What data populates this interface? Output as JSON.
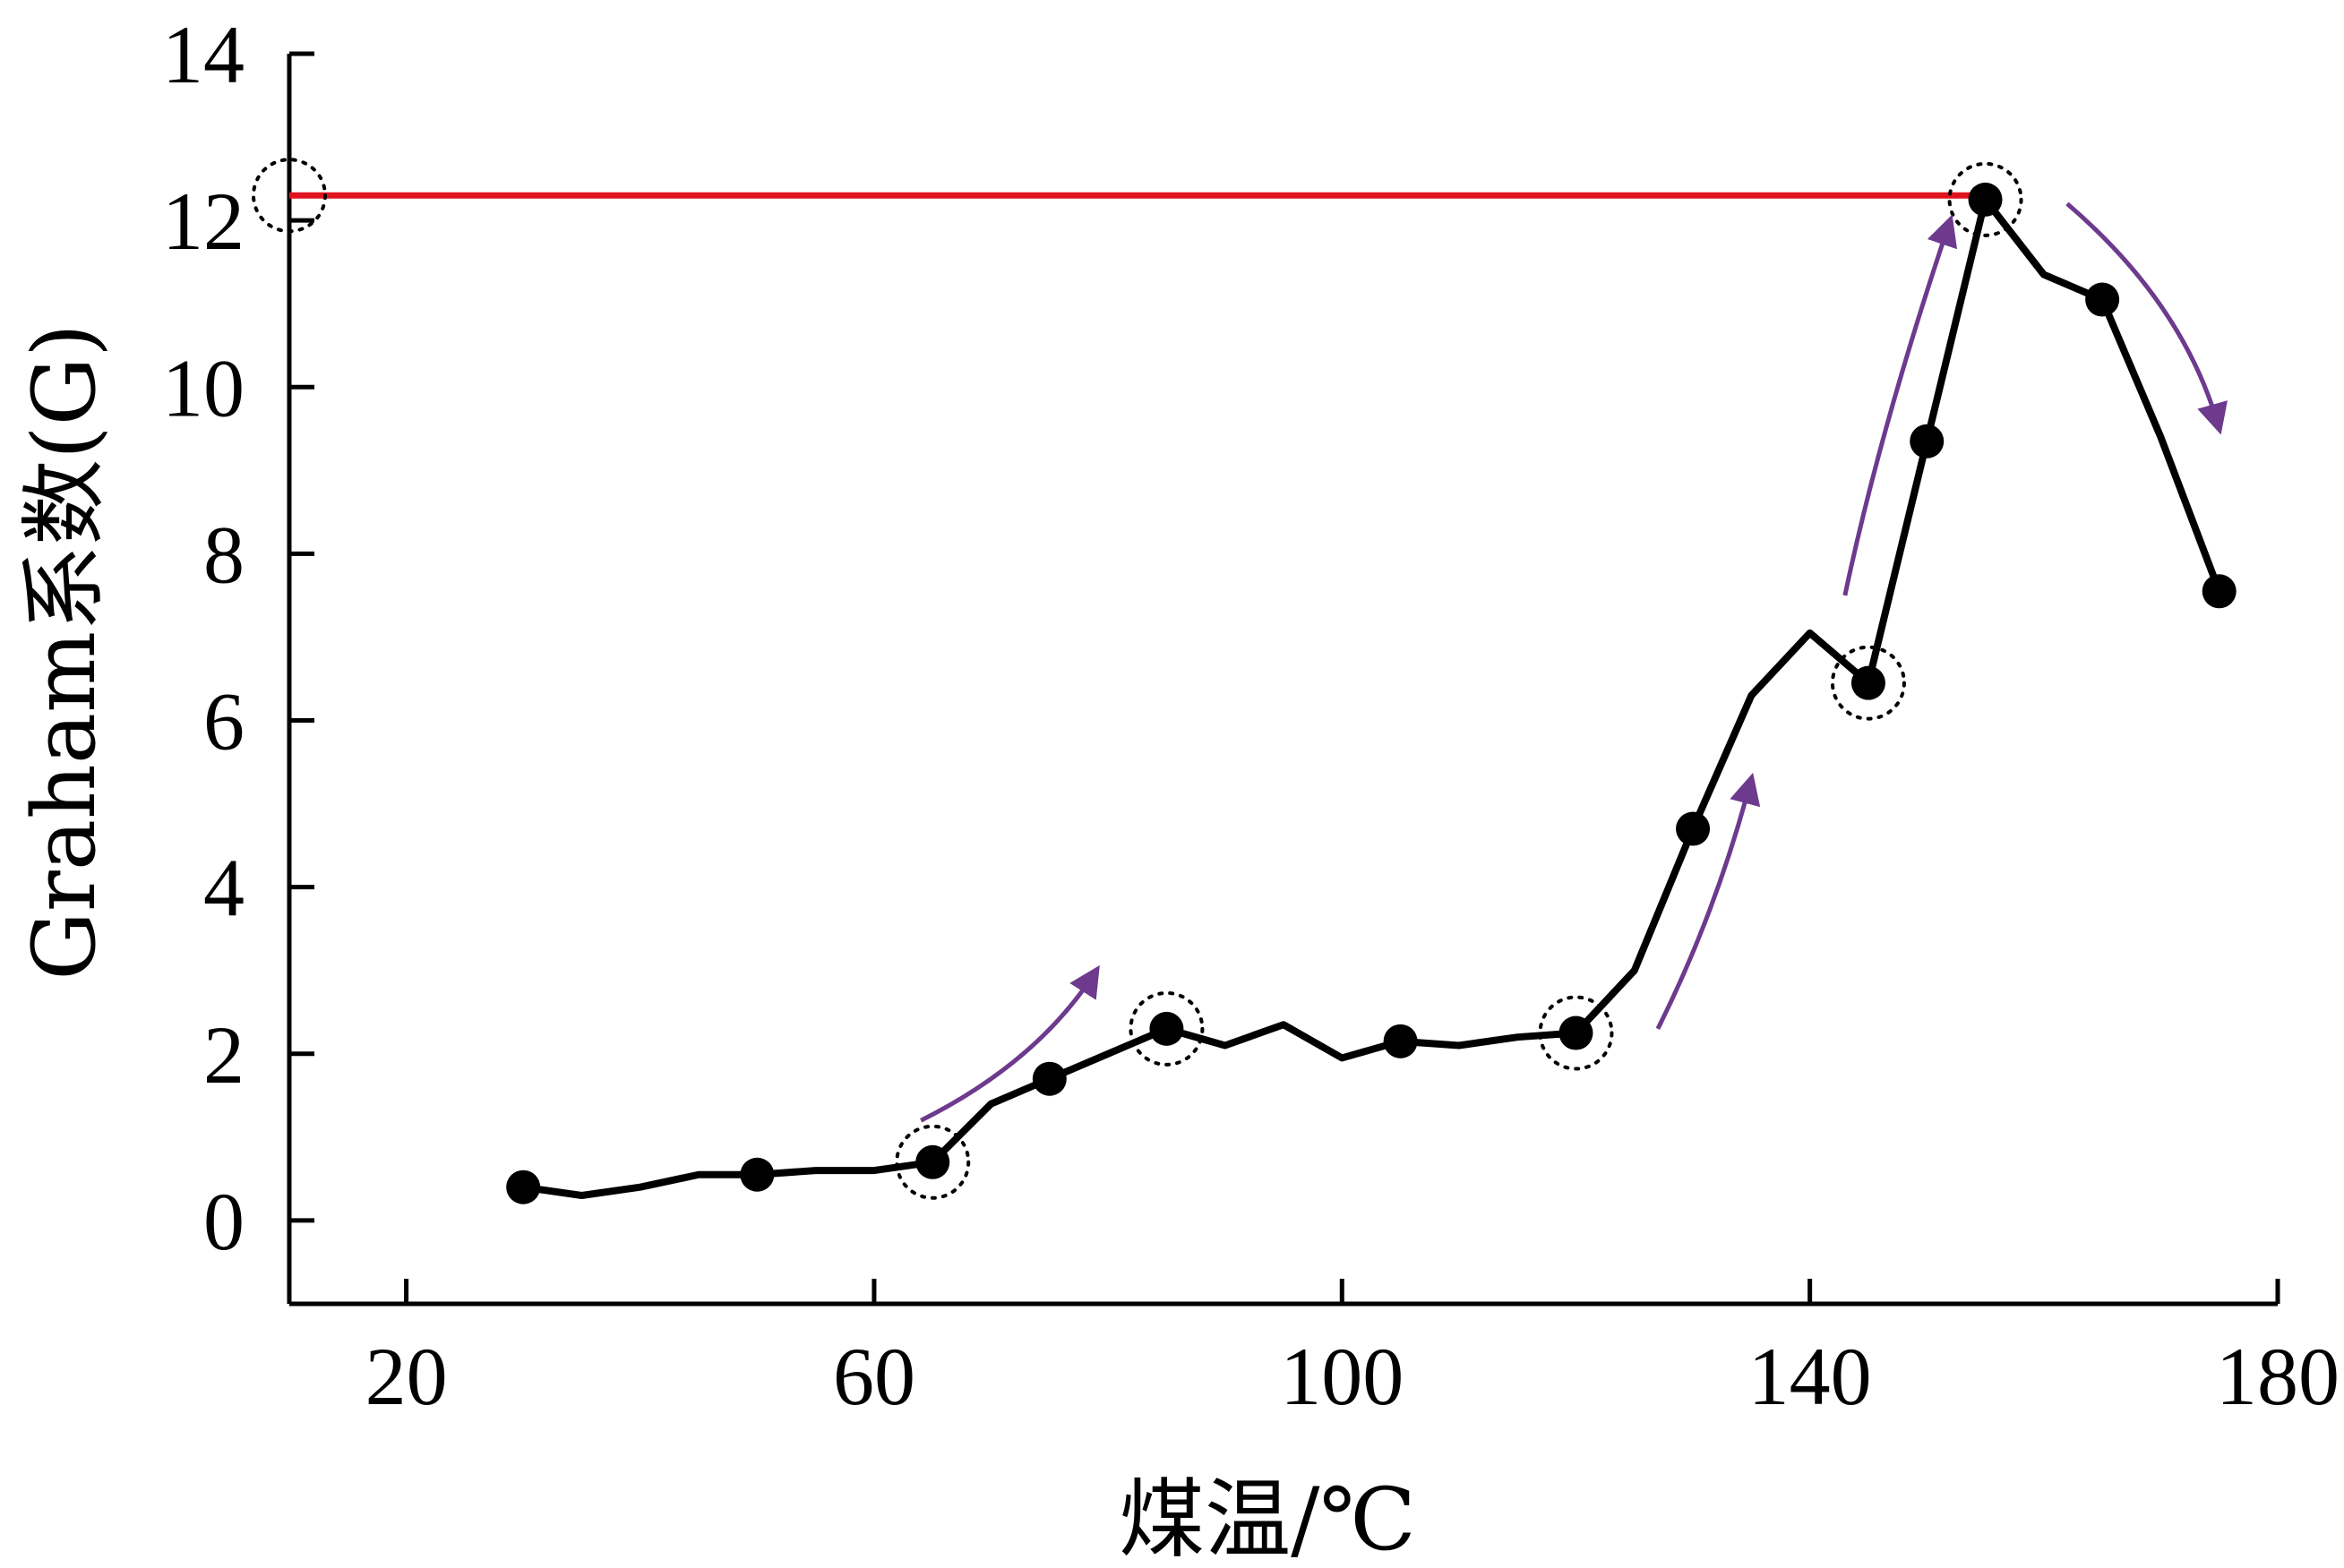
{
  "chart_data": {
    "type": "line",
    "title": "",
    "xlabel": "煤温/℃",
    "ylabel": "Graham系数(G)",
    "xlim": [
      10,
      180
    ],
    "ylim": [
      -1,
      14
    ],
    "x_ticks": [
      20,
      60,
      100,
      140,
      180
    ],
    "y_ticks": [
      0,
      2,
      4,
      6,
      8,
      10,
      12,
      14
    ],
    "grid": false,
    "legend": "none",
    "series": [
      {
        "line": [
          [
            30,
            0.4
          ],
          [
            35,
            0.3
          ],
          [
            40,
            0.4
          ],
          [
            45,
            0.55
          ],
          [
            50,
            0.55
          ],
          [
            55,
            0.6
          ],
          [
            60,
            0.6
          ],
          [
            65,
            0.7
          ],
          [
            70,
            1.4
          ],
          [
            75,
            1.7
          ],
          [
            80,
            2.0
          ],
          [
            85,
            2.3
          ],
          [
            90,
            2.1
          ],
          [
            95,
            2.35
          ],
          [
            100,
            1.95
          ],
          [
            105,
            2.15
          ],
          [
            110,
            2.1
          ],
          [
            115,
            2.2
          ],
          [
            120,
            2.25
          ],
          [
            125,
            3.0
          ],
          [
            130,
            4.7
          ],
          [
            135,
            6.3
          ],
          [
            140,
            7.05
          ],
          [
            145,
            6.45
          ],
          [
            150,
            9.35
          ],
          [
            155,
            12.25
          ],
          [
            160,
            11.35
          ],
          [
            165,
            11.05
          ],
          [
            170,
            9.4
          ],
          [
            175,
            7.55
          ]
        ],
        "markers": [
          [
            30,
            0.4
          ],
          [
            50,
            0.55
          ],
          [
            65,
            0.7
          ],
          [
            75,
            1.7
          ],
          [
            85,
            2.3
          ],
          [
            105,
            2.15
          ],
          [
            120,
            2.25
          ],
          [
            130,
            4.7
          ],
          [
            145,
            6.45
          ],
          [
            150,
            9.35
          ],
          [
            155,
            12.25
          ],
          [
            165,
            11.05
          ],
          [
            175,
            7.55
          ]
        ]
      }
    ],
    "reference_line": {
      "y": 12.3,
      "x_range": [
        10,
        155
      ],
      "color": "#e0141e"
    },
    "highlighted_points": [
      [
        10,
        12.3
      ],
      [
        65,
        0.7
      ],
      [
        85,
        2.3
      ],
      [
        120,
        2.25
      ],
      [
        145,
        6.45
      ],
      [
        155,
        12.25
      ]
    ],
    "trend_arrows": [
      {
        "from": [
          64,
          1.2
        ],
        "control": [
          74,
          1.9
        ],
        "to": [
          79,
          3.0
        ]
      },
      {
        "from": [
          127,
          2.3
        ],
        "control": [
          132,
          3.7
        ],
        "to": [
          135,
          5.3
        ]
      },
      {
        "from": [
          143,
          7.5
        ],
        "control": [
          146,
          9.5
        ],
        "to": [
          152,
          12.0
        ]
      },
      {
        "from": [
          162,
          12.2
        ],
        "control": [
          172,
          11.0
        ],
        "to": [
          175,
          9.5
        ]
      }
    ],
    "arrow_color": "#6d3a8e",
    "line_color": "#000000"
  }
}
